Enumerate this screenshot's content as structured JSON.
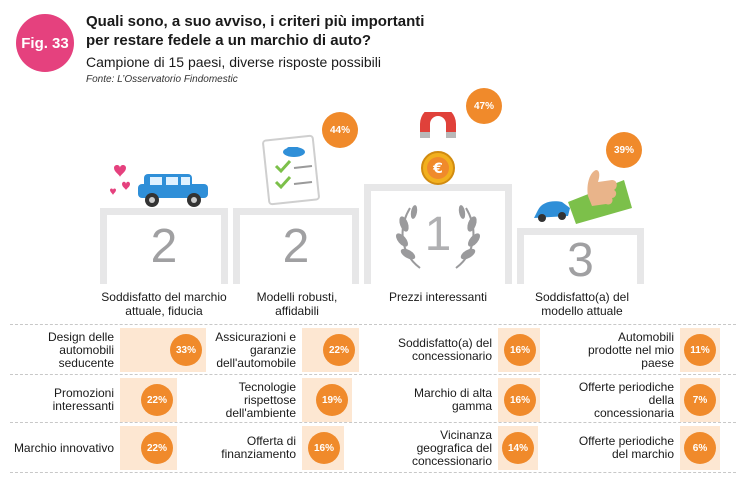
{
  "figure": {
    "badge": "Fig. 33"
  },
  "header": {
    "title_line1": "Quali sono, a suo avviso, i criteri più importanti",
    "title_line2": "per restare fedele a un marchio di auto?",
    "subtitle": "Campione di 15 paesi, diverse risposte possibili",
    "source": "Fonte: L’Osservatorio Findomestic"
  },
  "colors": {
    "badge": "#e5417e",
    "accent": "#f08a2b",
    "bar_bg": "#fde7d2",
    "podium": "#e7e7e8"
  },
  "chart_data": [
    {
      "type": "bar",
      "categories": [
        "Soddisfatto del marchio attuale, fiducia",
        "Modelli robusti, affidabili",
        "Prezzi interessanti",
        "Soddisfatto(a) del modello attuale"
      ],
      "values": [
        null,
        44,
        47,
        39
      ],
      "ranks": [
        "2",
        "2",
        "1",
        "3"
      ],
      "value_labels": [
        "",
        "44%",
        "47%",
        "39%"
      ],
      "icons": [
        "car-with-hearts-icon",
        "checklist-icon",
        "magnet-coin-icon",
        "thumbs-up-car-icon"
      ]
    },
    {
      "type": "bar",
      "rows": [
        [
          {
            "label": "Design delle automobili seducente",
            "value": 33,
            "value_label": "33%"
          },
          {
            "label": "Assicurazioni e garanzie dell'automobile",
            "value": 22,
            "value_label": "22%"
          },
          {
            "label": "Soddisfatto(a) del concessionario",
            "value": 16,
            "value_label": "16%"
          },
          {
            "label": "Automobili prodotte nel mio paese",
            "value": 11,
            "value_label": "11%"
          }
        ],
        [
          {
            "label": "Promozioni interessanti",
            "value": 22,
            "value_label": "22%"
          },
          {
            "label": "Tecnologie rispettose dell'ambiente",
            "value": 19,
            "value_label": "19%"
          },
          {
            "label": "Marchio di alta gamma",
            "value": 16,
            "value_label": "16%"
          },
          {
            "label": "Offerte periodiche della concessionaria",
            "value": 7,
            "value_label": "7%"
          }
        ],
        [
          {
            "label": "Marchio innovativo",
            "value": 22,
            "value_label": "22%"
          },
          {
            "label": "Offerta di finanziamento",
            "value": 16,
            "value_label": "16%"
          },
          {
            "label": "Vicinanza geografica del concessionario",
            "value": 14,
            "value_label": "14%"
          },
          {
            "label": "Offerte periodiche del marchio",
            "value": 6,
            "value_label": "6%"
          }
        ]
      ]
    }
  ]
}
